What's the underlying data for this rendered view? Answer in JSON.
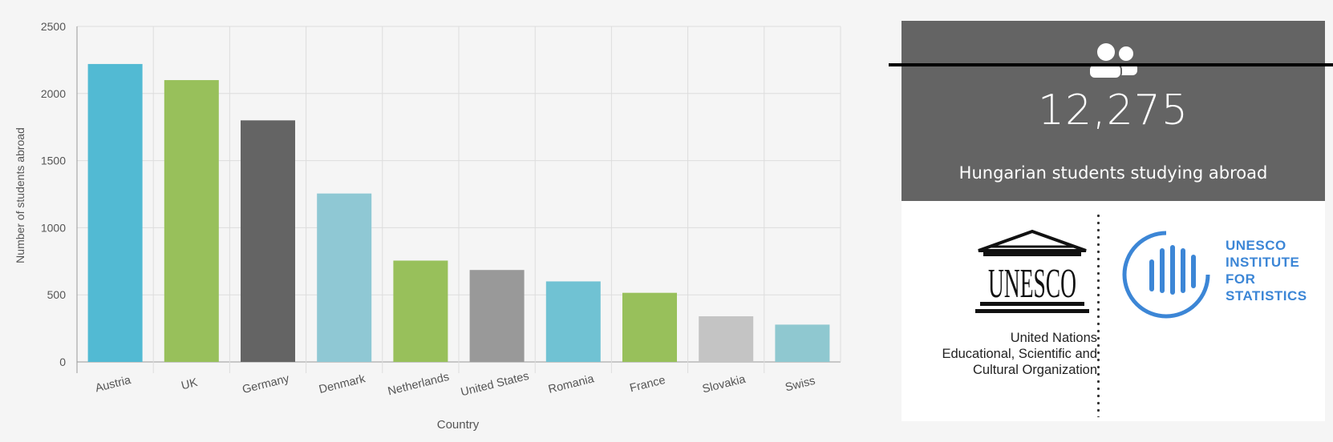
{
  "chart_data": {
    "type": "bar",
    "categories": [
      "Austria",
      "UK",
      "Germany",
      "Denmark",
      "Netherlands",
      "United States",
      "Romania",
      "France",
      "Slovakia",
      "Swiss"
    ],
    "values": [
      2220,
      2100,
      1800,
      1255,
      755,
      685,
      600,
      515,
      340,
      278
    ],
    "colors": [
      "#52bad3",
      "#98c05b",
      "#646464",
      "#8fc8d4",
      "#98c05b",
      "#999999",
      "#70c2d3",
      "#98c05b",
      "#c4c4c4",
      "#8fc8d0"
    ],
    "xlabel": "Country",
    "ylabel": "Number of students abroad",
    "ylim": [
      0,
      2500
    ],
    "yticks": [
      0,
      500,
      1000,
      1500,
      2000,
      2500
    ],
    "grid": true
  },
  "stat_card": {
    "icon": "people-icon",
    "count": "12,275",
    "caption": "Hungarian students studying abroad",
    "background": "#646464"
  },
  "logos": {
    "unesco_wordmark": "UNESCO",
    "unesco_text": [
      "United Nations",
      "Educational, Scientific and",
      "Cultural Organization"
    ],
    "uis_text": [
      "UNESCO",
      "INSTITUTE",
      "FOR",
      "STATISTICS"
    ],
    "uis_color": "#3c86d6"
  }
}
